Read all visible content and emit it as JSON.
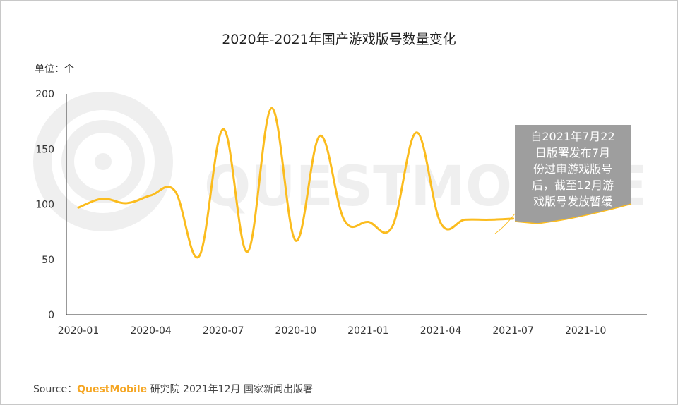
{
  "chart_data": {
    "type": "line",
    "title": "2020年-2021年国产游戏版号数量变化",
    "unit_label": "单位：个",
    "ylim": [
      0,
      200
    ],
    "yticks": [
      "0",
      "50",
      "100",
      "150",
      "200"
    ],
    "xticks": [
      "2020-01",
      "2020-04",
      "2020-07",
      "2020-10",
      "2021-01",
      "2021-04",
      "2021-07",
      "2021-10"
    ],
    "series": [
      {
        "color": "#FBBC1E",
        "x": [
          "2020-01",
          "2020-02",
          "2020-03",
          "2020-04",
          "2020-05",
          "2020-06",
          "2020-07",
          "2020-08",
          "2020-09",
          "2020-10",
          "2020-11",
          "2020-12",
          "2021-01",
          "2021-02",
          "2021-03",
          "2021-04",
          "2021-05",
          "2021-06",
          "2021-07"
        ],
        "values": [
          97,
          105,
          101,
          108,
          112,
          53,
          168,
          57,
          187,
          67,
          162,
          86,
          84,
          80,
          165,
          83,
          86,
          86,
          87
        ]
      }
    ],
    "annotation": [
      "自2021年7月22",
      "日版署发布7月",
      "份过审游戏版号",
      "后，截至12月游",
      "戏版号发放暂缓"
    ],
    "watermark": "QUESTMOBILE"
  },
  "source": {
    "prefix": "Source：",
    "brand": "QuestMobile",
    "suffix": " 研究院 2021年12月 国家新闻出版署"
  },
  "colors": {
    "line": "#FBBC1E",
    "callout": "#9E9E9E",
    "axis": "#333333"
  }
}
